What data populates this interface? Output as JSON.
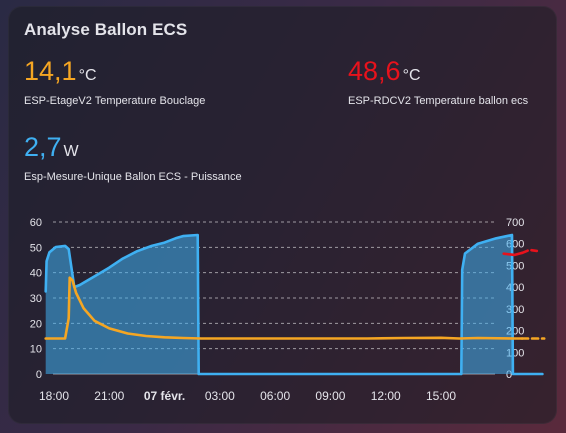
{
  "card": {
    "title": "Analyse Ballon ECS",
    "entities": [
      {
        "value": "14,1",
        "unit": "°C",
        "name": "ESP-EtageV2 Temperature Bouclage",
        "color": "#f5a623"
      },
      {
        "value": "48,6",
        "unit": "°C",
        "name": "ESP-RDCV2 Temperature ballon ecs",
        "color": "#e8121c"
      },
      {
        "value": "2,7",
        "unit": "W",
        "name": "Esp-Mesure-Unique Ballon ECS - Puissance",
        "color": "#3fb0f2"
      }
    ]
  },
  "chart_data": {
    "type": "line",
    "x_ticks": [
      "18:00",
      "21:00",
      "07 févr.",
      "03:00",
      "06:00",
      "09:00",
      "12:00",
      "15:00"
    ],
    "x_start_hour": 17.5,
    "x_end_hour": 41.5,
    "y_left": {
      "min": 0,
      "max": 60,
      "ticks": [
        0,
        10,
        20,
        30,
        40,
        50,
        60
      ]
    },
    "y_right": {
      "min": 0,
      "max": 700,
      "ticks": [
        0,
        100,
        200,
        300,
        400,
        500,
        600,
        700
      ]
    },
    "series": [
      {
        "name": "Esp-Mesure-Unique Ballon ECS - Puissance",
        "axis": "right",
        "color": "#3fb0f2",
        "fill": true,
        "points": [
          [
            17.55,
            380
          ],
          [
            17.6,
            520
          ],
          [
            17.75,
            560
          ],
          [
            18.1,
            585
          ],
          [
            18.6,
            590
          ],
          [
            18.8,
            575
          ],
          [
            19.1,
            400
          ],
          [
            19.4,
            410
          ],
          [
            19.8,
            430
          ],
          [
            20.3,
            455
          ],
          [
            21,
            490
          ],
          [
            21.7,
            530
          ],
          [
            22.5,
            565
          ],
          [
            23.3,
            590
          ],
          [
            24,
            605
          ],
          [
            24.6,
            625
          ],
          [
            25,
            635
          ],
          [
            25.8,
            640
          ],
          [
            25.85,
            0
          ],
          [
            40.1,
            0
          ],
          [
            40.15,
            480
          ],
          [
            40.3,
            555
          ],
          [
            41,
            600
          ],
          [
            42,
            625
          ],
          [
            42.85,
            640
          ],
          [
            42.9,
            0
          ],
          [
            44.5,
            0
          ]
        ]
      },
      {
        "name": "ESP-EtageV2 Temperature Bouclage",
        "axis": "left",
        "color": "#f5a623",
        "fill": false,
        "points": [
          [
            17.55,
            14
          ],
          [
            18.6,
            14
          ],
          [
            18.7,
            18
          ],
          [
            18.8,
            22
          ],
          [
            18.85,
            38
          ],
          [
            19.0,
            37
          ],
          [
            19.2,
            32
          ],
          [
            19.6,
            26
          ],
          [
            20.2,
            21
          ],
          [
            21,
            18
          ],
          [
            22,
            16
          ],
          [
            23,
            15
          ],
          [
            24,
            14.5
          ],
          [
            25,
            14.2
          ],
          [
            26,
            14
          ],
          [
            29,
            14
          ],
          [
            32,
            14
          ],
          [
            35,
            14
          ],
          [
            37,
            14.2
          ],
          [
            39,
            14.3
          ],
          [
            40,
            14
          ],
          [
            41,
            14.2
          ],
          [
            43,
            14
          ],
          [
            43.4,
            14
          ]
        ]
      },
      {
        "name": "ESP-EtageV2 Temperature Bouclage (projection)",
        "axis": "left",
        "color": "#f5a623",
        "dashed": true,
        "points": [
          [
            43.4,
            14
          ],
          [
            44.6,
            14
          ]
        ]
      },
      {
        "name": "ESP-RDCV2 Temperature ballon ecs",
        "axis": "left",
        "color": "#e8121c",
        "fill": false,
        "points": [
          [
            42.4,
            47.5
          ],
          [
            43.0,
            47
          ],
          [
            43.4,
            47.8
          ]
        ]
      },
      {
        "name": "ESP-RDCV2 Temperature ballon ecs (projection)",
        "axis": "left",
        "color": "#e8121c",
        "dashed": true,
        "points": [
          [
            43.4,
            47.8
          ],
          [
            43.8,
            49
          ],
          [
            44.2,
            48.6
          ]
        ]
      }
    ]
  }
}
